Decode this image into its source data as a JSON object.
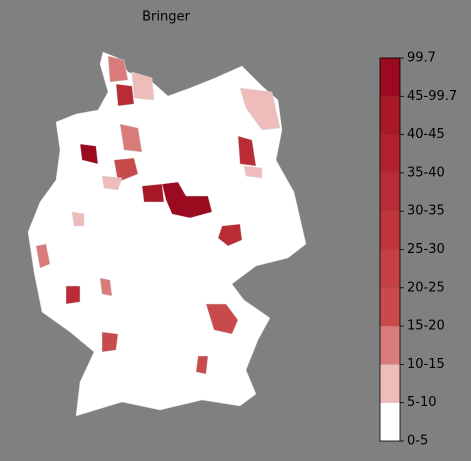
{
  "title": "Bringer",
  "colorbar": {
    "ticks": [
      "0-5",
      "5-10",
      "10-15",
      "15-20",
      "20-25",
      "25-30",
      "30-35",
      "35-40",
      "40-45",
      "45-99.7",
      "99.7"
    ],
    "colors": [
      "#ffffff",
      "#efbcbc",
      "#d97b7b",
      "#c94a4a",
      "#c44045",
      "#bf363d",
      "#b92c35",
      "#b2222e",
      "#a91826",
      "#9b0a1e"
    ]
  }
}
